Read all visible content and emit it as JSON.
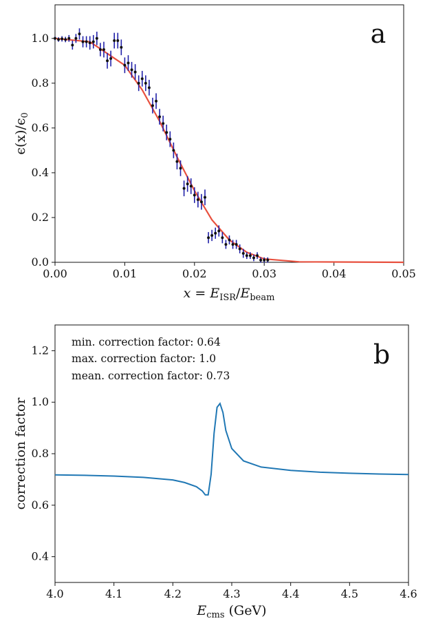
{
  "chart_data": [
    {
      "type": "scatter",
      "panel_label": "a",
      "xlabel": "x = E_ISR/E_beam",
      "ylabel": "ϵ(x)/ϵ_0",
      "xlim": [
        0,
        0.05
      ],
      "ylim": [
        0,
        1.15
      ],
      "xticks": [
        "0.00",
        "0.01",
        "0.02",
        "0.03",
        "0.04",
        "0.05"
      ],
      "yticks": [
        "0.0",
        "0.2",
        "0.4",
        "0.6",
        "0.8",
        "1.0"
      ],
      "grid": false,
      "colors": {
        "points": "#111111",
        "errorbars": "#1f1fa8",
        "fit": "#e8503e"
      },
      "points": [
        [
          0.0,
          1.0,
          0.008
        ],
        [
          0.0005,
          0.995,
          0.01
        ],
        [
          0.001,
          0.998,
          0.012
        ],
        [
          0.0015,
          0.995,
          0.012
        ],
        [
          0.002,
          1.0,
          0.015
        ],
        [
          0.0025,
          0.97,
          0.02
        ],
        [
          0.003,
          1.0,
          0.02
        ],
        [
          0.0035,
          1.02,
          0.025
        ],
        [
          0.004,
          0.985,
          0.025
        ],
        [
          0.0045,
          0.985,
          0.025
        ],
        [
          0.005,
          0.98,
          0.03
        ],
        [
          0.0055,
          0.985,
          0.03
        ],
        [
          0.006,
          1.0,
          0.03
        ],
        [
          0.0065,
          0.95,
          0.03
        ],
        [
          0.007,
          0.95,
          0.035
        ],
        [
          0.0075,
          0.9,
          0.035
        ],
        [
          0.008,
          0.91,
          0.035
        ],
        [
          0.0085,
          0.99,
          0.035
        ],
        [
          0.009,
          0.99,
          0.035
        ],
        [
          0.0095,
          0.96,
          0.035
        ],
        [
          0.01,
          0.88,
          0.035
        ],
        [
          0.0105,
          0.89,
          0.035
        ],
        [
          0.011,
          0.86,
          0.035
        ],
        [
          0.0115,
          0.85,
          0.035
        ],
        [
          0.012,
          0.8,
          0.035
        ],
        [
          0.0125,
          0.82,
          0.035
        ],
        [
          0.013,
          0.8,
          0.035
        ],
        [
          0.0135,
          0.78,
          0.035
        ],
        [
          0.014,
          0.7,
          0.035
        ],
        [
          0.0145,
          0.72,
          0.035
        ],
        [
          0.015,
          0.65,
          0.035
        ],
        [
          0.0155,
          0.62,
          0.035
        ],
        [
          0.016,
          0.58,
          0.035
        ],
        [
          0.0165,
          0.55,
          0.035
        ],
        [
          0.017,
          0.5,
          0.035
        ],
        [
          0.0175,
          0.45,
          0.035
        ],
        [
          0.018,
          0.42,
          0.035
        ],
        [
          0.0185,
          0.33,
          0.035
        ],
        [
          0.019,
          0.35,
          0.035
        ],
        [
          0.0195,
          0.34,
          0.035
        ],
        [
          0.02,
          0.3,
          0.035
        ],
        [
          0.0205,
          0.28,
          0.035
        ],
        [
          0.021,
          0.27,
          0.035
        ],
        [
          0.0215,
          0.29,
          0.035
        ],
        [
          0.022,
          0.11,
          0.025
        ],
        [
          0.0225,
          0.12,
          0.025
        ],
        [
          0.023,
          0.13,
          0.025
        ],
        [
          0.0235,
          0.14,
          0.025
        ],
        [
          0.024,
          0.11,
          0.025
        ],
        [
          0.0245,
          0.08,
          0.02
        ],
        [
          0.025,
          0.1,
          0.02
        ],
        [
          0.0255,
          0.08,
          0.02
        ],
        [
          0.026,
          0.08,
          0.02
        ],
        [
          0.0265,
          0.06,
          0.02
        ],
        [
          0.027,
          0.04,
          0.02
        ],
        [
          0.0275,
          0.03,
          0.015
        ],
        [
          0.028,
          0.03,
          0.015
        ],
        [
          0.0285,
          0.02,
          0.015
        ],
        [
          0.029,
          0.03,
          0.015
        ],
        [
          0.0295,
          0.01,
          0.012
        ],
        [
          0.03,
          0.01,
          0.012
        ],
        [
          0.0305,
          0.01,
          0.012
        ]
      ],
      "fit_curve": {
        "x": [
          0,
          0.005,
          0.01,
          0.0125,
          0.015,
          0.0175,
          0.02,
          0.0225,
          0.025,
          0.0275,
          0.03,
          0.035,
          0.05
        ],
        "y": [
          1.0,
          0.985,
          0.88,
          0.77,
          0.63,
          0.47,
          0.32,
          0.19,
          0.1,
          0.045,
          0.015,
          0.002,
          0.0
        ]
      }
    },
    {
      "type": "line",
      "panel_label": "b",
      "xlabel": "E_cms (GeV)",
      "ylabel": "correction factor",
      "xlim": [
        4.0,
        4.6
      ],
      "ylim": [
        0.3,
        1.3
      ],
      "xticks": [
        "4.0",
        "4.1",
        "4.2",
        "4.3",
        "4.4",
        "4.5",
        "4.6"
      ],
      "yticks": [
        "0.4",
        "0.6",
        "0.8",
        "1.0",
        "1.2"
      ],
      "grid": false,
      "colors": {
        "line": "#1f77b4"
      },
      "annotations": [
        "min. correction factor: 0.64",
        "max. correction factor: 1.0",
        "mean. correction factor: 0.73"
      ],
      "x": [
        4.0,
        4.05,
        4.1,
        4.15,
        4.2,
        4.22,
        4.24,
        4.25,
        4.255,
        4.26,
        4.265,
        4.27,
        4.275,
        4.28,
        4.285,
        4.29,
        4.3,
        4.32,
        4.35,
        4.4,
        4.45,
        4.5,
        4.55,
        4.6
      ],
      "y": [
        0.718,
        0.716,
        0.713,
        0.708,
        0.698,
        0.688,
        0.672,
        0.655,
        0.64,
        0.64,
        0.72,
        0.88,
        0.98,
        0.995,
        0.96,
        0.89,
        0.82,
        0.772,
        0.748,
        0.735,
        0.728,
        0.724,
        0.721,
        0.719
      ]
    }
  ],
  "panel_a": {
    "letter": "a",
    "xlabel_main": "x",
    "xlabel_eq": " = ",
    "xlabel_E1": "E",
    "xlabel_sub1": "ISR",
    "xlabel_slash": "/",
    "xlabel_E2": "E",
    "xlabel_sub2": "beam",
    "ylabel_eps": "ϵ(x)/ϵ",
    "ylabel_sub": "0"
  },
  "panel_b": {
    "letter": "b",
    "xlabel_E": "E",
    "xlabel_sub": "cms",
    "xlabel_unit": " (GeV)",
    "ylabel": "correction factor"
  }
}
